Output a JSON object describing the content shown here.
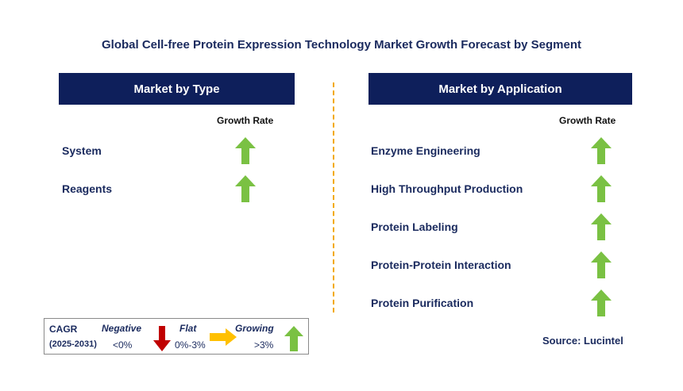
{
  "title": "Global Cell-free Protein Expression Technology Market Growth Forecast by Segment",
  "left": {
    "header": "Market by Type",
    "column_header": "Growth Rate",
    "items": [
      {
        "label": "System",
        "trend": "growing"
      },
      {
        "label": "Reagents",
        "trend": "growing"
      }
    ]
  },
  "right": {
    "header": "Market by Application",
    "column_header": "Growth Rate",
    "items": [
      {
        "label": "Enzyme Engineering",
        "trend": "growing"
      },
      {
        "label": "High Throughput Production",
        "trend": "growing"
      },
      {
        "label": "Protein Labeling",
        "trend": "growing"
      },
      {
        "label": "Protein-Protein Interaction",
        "trend": "growing"
      },
      {
        "label": "Protein Purification",
        "trend": "growing"
      }
    ]
  },
  "legend": {
    "cagr_label": "CAGR",
    "period": "(2025-2031)",
    "negative_label": "Negative",
    "negative_range": "<0%",
    "flat_label": "Flat",
    "flat_range": "0%-3%",
    "growing_label": "Growing",
    "growing_range": ">3%"
  },
  "source": "Source: Lucintel",
  "colors": {
    "header_bg": "#0e1f5b",
    "growing": "#7ac143",
    "negative": "#c00000",
    "flat": "#ffc000",
    "divider": "#f2a900"
  }
}
